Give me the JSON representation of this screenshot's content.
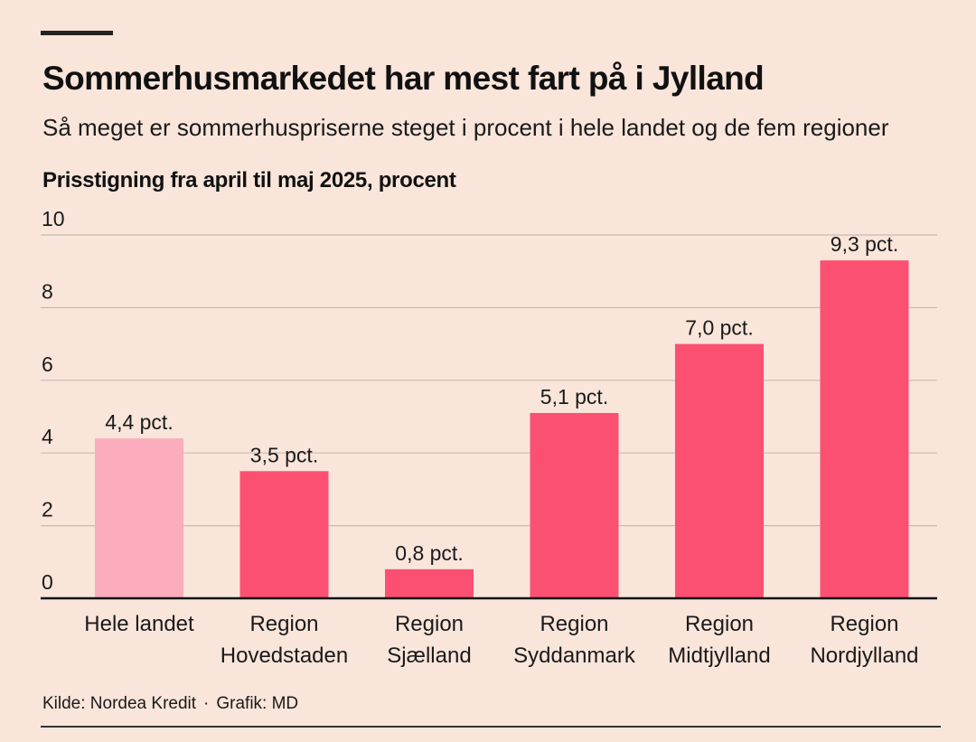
{
  "header": {
    "title": "Sommerhusmarkedet har mest fart på i Jylland",
    "subtitle": "Så meget er sommerhuspriserne steget i procent i hele landet og de fem regioner"
  },
  "chart_data": {
    "type": "bar",
    "title": "Prisstigning fra april til maj 2025, procent",
    "xlabel": "",
    "ylabel": "",
    "ylim": [
      0,
      10
    ],
    "yticks": [
      0,
      2,
      4,
      6,
      8,
      10
    ],
    "grid": true,
    "categories": [
      [
        "Hele landet"
      ],
      [
        "Region",
        "Hovedstaden"
      ],
      [
        "Region",
        "Sjælland"
      ],
      [
        "Region",
        "Syddanmark"
      ],
      [
        "Region",
        "Midtjylland"
      ],
      [
        "Region",
        "Nordjylland"
      ]
    ],
    "values": [
      4.4,
      3.5,
      0.8,
      5.1,
      7.0,
      9.3
    ],
    "data_labels": [
      "4,4 pct.",
      "3,5 pct.",
      "0,8 pct.",
      "5,1 pct.",
      "7,0 pct.",
      "9,3 pct."
    ],
    "colors": [
      "#fbacbd",
      "#fc5072",
      "#fc5072",
      "#fc5072",
      "#fc5072",
      "#fc5072"
    ]
  },
  "footer": {
    "source": "Kilde: Nordea Kredit",
    "separator": "·",
    "credit": "Grafik: MD"
  },
  "style": {
    "background": "#f9e5da",
    "grid_color": "#c9bbb4",
    "axis_color": "#111111"
  }
}
